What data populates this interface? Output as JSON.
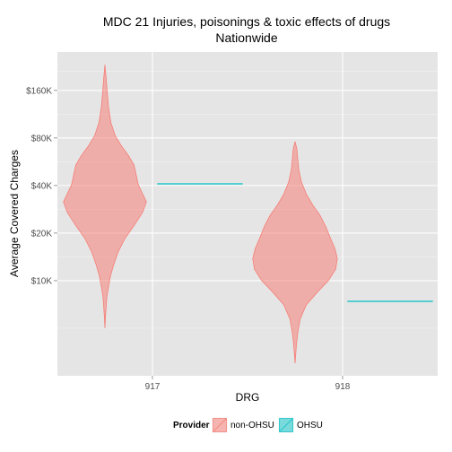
{
  "chart_data": {
    "type": "violin",
    "title": "MDC 21 Injuries, poisonings & toxic effects of drugs",
    "subtitle": "Nationwide",
    "xlabel": "DRG",
    "ylabel": "Average Covered Charges",
    "y_scale": "log",
    "categories": [
      "917",
      "918"
    ],
    "y_ticks": [
      {
        "value": 10000,
        "label": "$10K"
      },
      {
        "value": 20000,
        "label": "$20K"
      },
      {
        "value": 40000,
        "label": "$40K"
      },
      {
        "value": 80000,
        "label": "$80K"
      },
      {
        "value": 160000,
        "label": "$160K"
      }
    ],
    "ylim": [
      2500,
      280000
    ],
    "grid": true,
    "legend": {
      "title": "Provider",
      "position": "bottom",
      "entries": [
        {
          "name": "non-OHSU",
          "fill": "#F8766D",
          "stroke": "#F8766D"
        },
        {
          "name": "OHSU",
          "fill": "#00BFC4",
          "stroke": "#00BFC4"
        }
      ]
    },
    "series": [
      {
        "name": "non-OHSU",
        "color": "#F8766D",
        "violins": [
          {
            "category": "917",
            "min": 5000,
            "max": 233000,
            "profile": [
              [
                5000,
                0.0
              ],
              [
                5700,
                0.01
              ],
              [
                6600,
                0.025
              ],
              [
                7800,
                0.045
              ],
              [
                9200,
                0.085
              ],
              [
                10800,
                0.135
              ],
              [
                12600,
                0.205
              ],
              [
                15200,
                0.31
              ],
              [
                18500,
                0.47
              ],
              [
                22500,
                0.69
              ],
              [
                27000,
                0.88
              ],
              [
                31500,
                0.97
              ],
              [
                35500,
                0.88
              ],
              [
                40500,
                0.78
              ],
              [
                47000,
                0.73
              ],
              [
                54000,
                0.68
              ],
              [
                62000,
                0.55
              ],
              [
                71000,
                0.39
              ],
              [
                83000,
                0.24
              ],
              [
                100000,
                0.14
              ],
              [
                125000,
                0.085
              ],
              [
                155000,
                0.055
              ],
              [
                190000,
                0.03
              ],
              [
                233000,
                0.0
              ]
            ]
          },
          {
            "category": "918",
            "min": 3000,
            "max": 76000,
            "profile": [
              [
                3000,
                0.0
              ],
              [
                3400,
                0.015
              ],
              [
                4000,
                0.035
              ],
              [
                4700,
                0.065
              ],
              [
                5700,
                0.12
              ],
              [
                7000,
                0.26
              ],
              [
                8500,
                0.53
              ],
              [
                10000,
                0.78
              ],
              [
                11800,
                0.95
              ],
              [
                13800,
                0.99
              ],
              [
                16000,
                0.93
              ],
              [
                18500,
                0.83
              ],
              [
                22000,
                0.72
              ],
              [
                26000,
                0.58
              ],
              [
                30000,
                0.42
              ],
              [
                35000,
                0.27
              ],
              [
                42000,
                0.15
              ],
              [
                50000,
                0.09
              ],
              [
                60000,
                0.06
              ],
              [
                68000,
                0.045
              ],
              [
                76000,
                0.0
              ]
            ]
          }
        ]
      },
      {
        "name": "OHSU",
        "color": "#00BFC4",
        "violins": [
          {
            "category": "917",
            "value": 41000
          },
          {
            "category": "918",
            "value": 7400
          }
        ]
      }
    ]
  }
}
